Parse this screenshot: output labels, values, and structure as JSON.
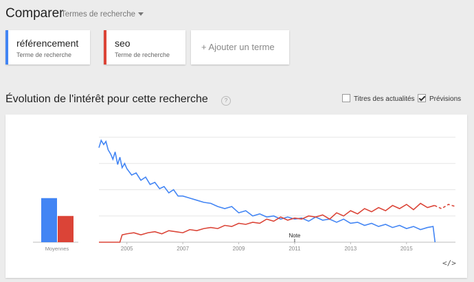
{
  "header": {
    "title": "Comparer",
    "dropdown_label": "Termes de recherche",
    "dropdown_icon": "caret-down-icon"
  },
  "terms": [
    {
      "name": "référencement",
      "sub": "Terme de recherche",
      "color": "#4285f4"
    },
    {
      "name": "seo",
      "sub": "Terme de recherche",
      "color": "#db4437"
    }
  ],
  "add_term_label": "+ Ajouter un terme",
  "section": {
    "title": "Évolution de l'intérêt pour cette recherche",
    "help": "?",
    "checkboxes": [
      {
        "label": "Titres des actualités",
        "checked": false
      },
      {
        "label": "Prévisions",
        "checked": true
      }
    ]
  },
  "embed_label": "</>",
  "chart_data": {
    "type": "line",
    "averages": {
      "label": "Moyennes",
      "values": [
        {
          "series": "référencement",
          "value": 42
        },
        {
          "series": "seo",
          "value": 25
        }
      ]
    },
    "x_ticks": [
      "2005",
      "2007",
      "2009",
      "2011",
      "2013",
      "2015"
    ],
    "xlim": [
      2004,
      2016.75
    ],
    "ylim": [
      0,
      100
    ],
    "grid": true,
    "note_label": "Note",
    "note_x": 2011,
    "series": [
      {
        "name": "référencement",
        "color": "#4285f4",
        "x": [
          2004.0,
          2004.08,
          2004.17,
          2004.25,
          2004.33,
          2004.42,
          2004.5,
          2004.58,
          2004.67,
          2004.75,
          2004.83,
          2004.92,
          2005.0,
          2005.17,
          2005.33,
          2005.5,
          2005.67,
          2005.83,
          2006.0,
          2006.17,
          2006.33,
          2006.5,
          2006.67,
          2006.83,
          2007.0,
          2007.25,
          2007.5,
          2007.75,
          2008.0,
          2008.25,
          2008.5,
          2008.75,
          2009.0,
          2009.25,
          2009.5,
          2009.75,
          2010.0,
          2010.25,
          2010.5,
          2010.75,
          2011.0,
          2011.25,
          2011.5,
          2011.75,
          2012.0,
          2012.25,
          2012.5,
          2012.75,
          2013.0,
          2013.25,
          2013.5,
          2013.75,
          2014.0,
          2014.25,
          2014.5,
          2014.75,
          2015.0,
          2015.25,
          2015.5,
          2015.75,
          2015.95,
          2016.02
        ],
        "values": [
          90,
          97,
          93,
          96,
          88,
          84,
          79,
          86,
          74,
          81,
          71,
          75,
          70,
          64,
          66,
          59,
          62,
          55,
          57,
          51,
          53,
          47,
          50,
          44,
          44,
          42,
          40,
          38,
          37,
          34,
          32,
          34,
          28,
          30,
          25,
          27,
          24,
          25,
          22,
          24,
          22,
          23,
          20,
          24,
          21,
          22,
          19,
          22,
          18,
          19,
          16,
          18,
          15,
          17,
          14,
          16,
          13,
          15,
          12,
          14,
          15,
          0
        ]
      },
      {
        "name": "seo",
        "color": "#db4437",
        "x": [
          2004.0,
          2004.75,
          2004.83,
          2005.0,
          2005.25,
          2005.5,
          2005.75,
          2006.0,
          2006.25,
          2006.5,
          2006.75,
          2007.0,
          2007.25,
          2007.5,
          2007.75,
          2008.0,
          2008.25,
          2008.5,
          2008.75,
          2009.0,
          2009.25,
          2009.5,
          2009.75,
          2010.0,
          2010.25,
          2010.5,
          2010.75,
          2011.0,
          2011.25,
          2011.5,
          2011.75,
          2012.0,
          2012.25,
          2012.5,
          2012.75,
          2013.0,
          2013.25,
          2013.5,
          2013.75,
          2014.0,
          2014.25,
          2014.5,
          2014.75,
          2015.0,
          2015.25,
          2015.5,
          2015.75,
          2016.0,
          2016.25,
          2016.5,
          2016.75
        ],
        "values": [
          0,
          0,
          7,
          8,
          9,
          7,
          9,
          10,
          8,
          11,
          10,
          9,
          12,
          11,
          13,
          14,
          13,
          16,
          15,
          18,
          17,
          19,
          18,
          22,
          20,
          24,
          21,
          23,
          22,
          25,
          24,
          26,
          22,
          28,
          25,
          30,
          27,
          32,
          29,
          33,
          30,
          35,
          32,
          36,
          31,
          37,
          33,
          35,
          32,
          36,
          34
        ],
        "forecast_from_x": 2016.0
      }
    ]
  }
}
